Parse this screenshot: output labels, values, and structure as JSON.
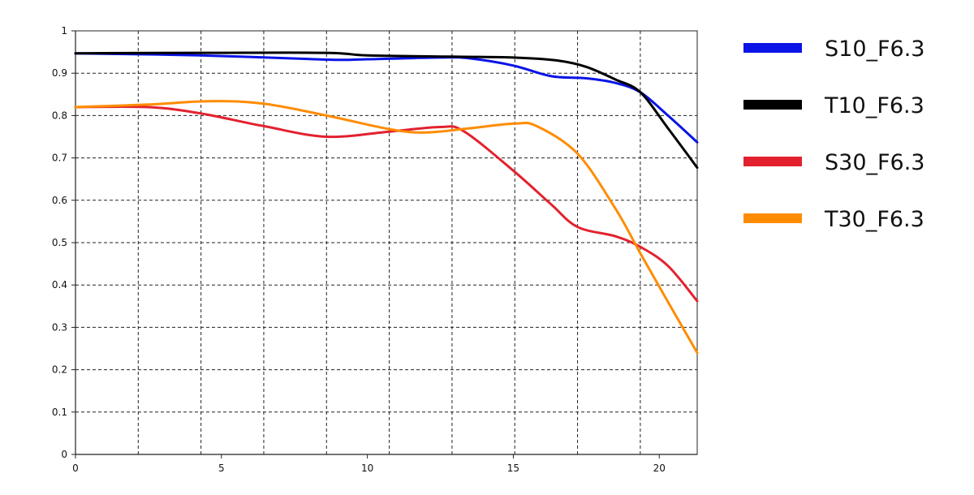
{
  "chart_data": {
    "type": "line",
    "title": "",
    "xlabel": "",
    "ylabel": "",
    "xlim": [
      0,
      21.3
    ],
    "ylim": [
      0,
      1
    ],
    "grid": true,
    "legend_position": "right",
    "x_ticks": [
      {
        "value": 0,
        "label": "0"
      },
      {
        "value": 5,
        "label": "5"
      },
      {
        "value": 10,
        "label": "10"
      },
      {
        "value": 15,
        "label": "15"
      },
      {
        "value": 20,
        "label": "20"
      }
    ],
    "y_ticks": [
      {
        "value": 0,
        "label": "0"
      },
      {
        "value": 0.1,
        "label": "0.1"
      },
      {
        "value": 0.2,
        "label": "0.2"
      },
      {
        "value": 0.3,
        "label": "0.3"
      },
      {
        "value": 0.4,
        "label": "0.4"
      },
      {
        "value": 0.5,
        "label": "0.5"
      },
      {
        "value": 0.6,
        "label": "0.6"
      },
      {
        "value": 0.7,
        "label": "0.7"
      },
      {
        "value": 0.8,
        "label": "0.8"
      },
      {
        "value": 0.9,
        "label": "0.9"
      },
      {
        "value": 1,
        "label": "1"
      }
    ],
    "x_grid": [
      2.15,
      4.3,
      6.45,
      8.6,
      10.75,
      12.9,
      15.05,
      17.2,
      19.35
    ],
    "y_grid": [
      0.1,
      0.2,
      0.3,
      0.4,
      0.5,
      0.6,
      0.7,
      0.8,
      0.9
    ],
    "series": [
      {
        "name": "S10_F6.3",
        "color": "#0a14e6",
        "points": [
          [
            0,
            0.947
          ],
          [
            4.3,
            0.942
          ],
          [
            8.6,
            0.932
          ],
          [
            10,
            0.933
          ],
          [
            12.5,
            0.937
          ],
          [
            13.5,
            0.935
          ],
          [
            15,
            0.918
          ],
          [
            16.3,
            0.893
          ],
          [
            17.5,
            0.888
          ],
          [
            18.5,
            0.877
          ],
          [
            19.35,
            0.855
          ],
          [
            20.3,
            0.8
          ],
          [
            21.3,
            0.737
          ]
        ]
      },
      {
        "name": "T10_F6.3",
        "color": "#000000",
        "points": [
          [
            0,
            0.947
          ],
          [
            4.3,
            0.948
          ],
          [
            8.6,
            0.948
          ],
          [
            10,
            0.942
          ],
          [
            12.9,
            0.939
          ],
          [
            15,
            0.937
          ],
          [
            16.5,
            0.93
          ],
          [
            17.5,
            0.915
          ],
          [
            18.5,
            0.885
          ],
          [
            19.35,
            0.855
          ],
          [
            20.3,
            0.77
          ],
          [
            21.3,
            0.677
          ]
        ]
      },
      {
        "name": "S30_F6.3",
        "color": "#e3212e",
        "points": [
          [
            0,
            0.82
          ],
          [
            2.5,
            0.82
          ],
          [
            4.3,
            0.805
          ],
          [
            6.45,
            0.775
          ],
          [
            8.6,
            0.75
          ],
          [
            10.75,
            0.762
          ],
          [
            12.5,
            0.773
          ],
          [
            13.3,
            0.763
          ],
          [
            15,
            0.67
          ],
          [
            16.3,
            0.59
          ],
          [
            17.2,
            0.537
          ],
          [
            18.5,
            0.515
          ],
          [
            19.35,
            0.49
          ],
          [
            20.3,
            0.445
          ],
          [
            21.3,
            0.362
          ]
        ]
      },
      {
        "name": "T30_F6.3",
        "color": "#ff8c00",
        "points": [
          [
            0,
            0.82
          ],
          [
            2.5,
            0.826
          ],
          [
            4.6,
            0.834
          ],
          [
            6.45,
            0.828
          ],
          [
            8.6,
            0.8
          ],
          [
            10.75,
            0.768
          ],
          [
            12,
            0.76
          ],
          [
            13.5,
            0.77
          ],
          [
            15.05,
            0.781
          ],
          [
            15.8,
            0.775
          ],
          [
            17.2,
            0.71
          ],
          [
            18.5,
            0.58
          ],
          [
            19.35,
            0.475
          ],
          [
            20.3,
            0.36
          ],
          [
            21.3,
            0.24
          ]
        ]
      }
    ]
  }
}
